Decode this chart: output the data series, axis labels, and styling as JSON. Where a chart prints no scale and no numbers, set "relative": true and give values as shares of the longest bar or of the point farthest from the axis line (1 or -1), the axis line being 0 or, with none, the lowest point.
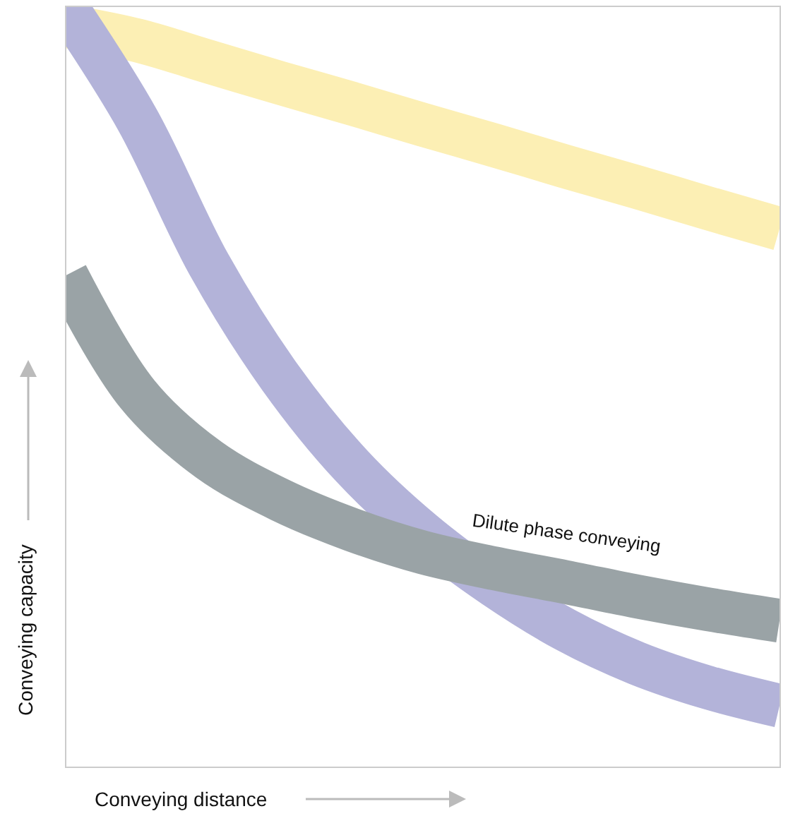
{
  "chart_data": {
    "type": "line",
    "relative": true,
    "xlabel": "Conveying distance",
    "ylabel": "Conveying capacity",
    "categories": [
      null,
      null,
      null,
      null,
      null,
      null,
      null,
      null,
      null,
      null,
      null
    ],
    "series": [
      {
        "color": "#fcefb4",
        "values": [
          0.975,
          0.956,
          0.928,
          0.9,
          0.873,
          0.845,
          0.818,
          0.79,
          0.763,
          0.735,
          0.708
        ]
      },
      {
        "color": "#b3b3d9",
        "values": [
          1.0,
          0.851,
          0.661,
          0.512,
          0.396,
          0.308,
          0.238,
          0.18,
          0.136,
          0.104,
          0.08
        ]
      },
      {
        "name": "Dilute phase conveying",
        "color": "#9aa3a6",
        "values": [
          0.647,
          0.49,
          0.404,
          0.351,
          0.312,
          0.282,
          0.261,
          0.243,
          0.224,
          0.207,
          0.192
        ]
      }
    ],
    "legend": false
  }
}
